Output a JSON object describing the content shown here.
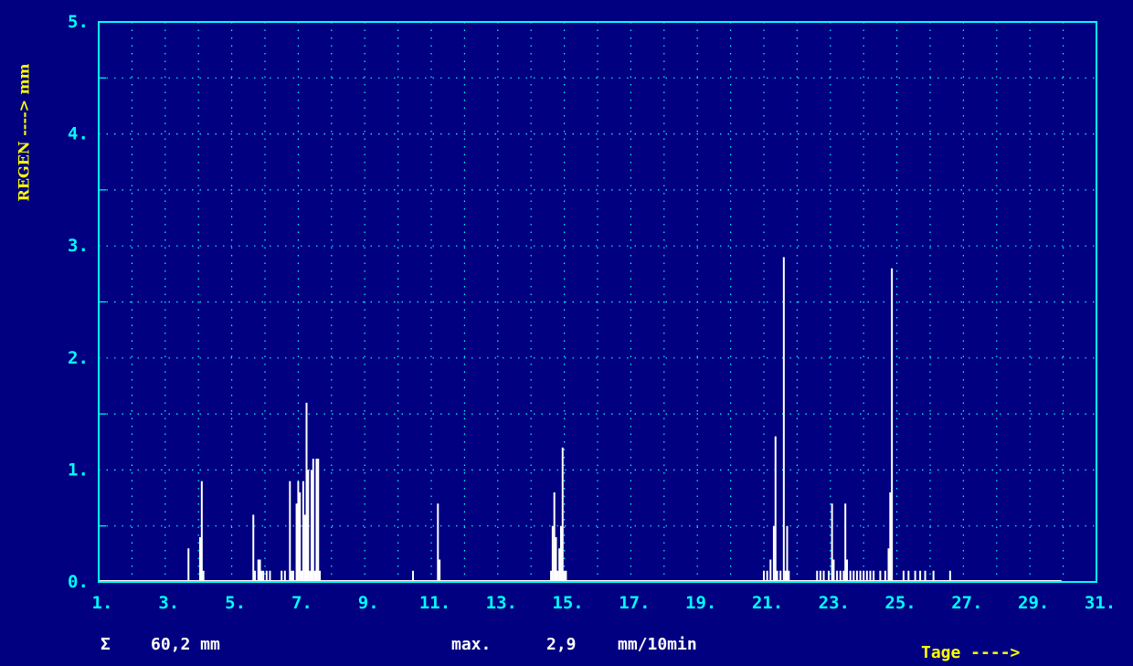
{
  "chart_data": {
    "type": "bar",
    "ylabel": "REGEN ----> mm",
    "xlabel": "Tage ---->",
    "xlim": [
      1,
      31
    ],
    "ylim": [
      0,
      5
    ],
    "grid": true,
    "x_ticks": [
      1,
      3,
      5,
      7,
      9,
      11,
      13,
      15,
      17,
      19,
      21,
      23,
      25,
      27,
      29,
      31
    ],
    "x_tick_labels": [
      "1.",
      "3.",
      "5.",
      "7.",
      "9.",
      "11.",
      "13.",
      "15.",
      "17.",
      "19.",
      "21.",
      "23.",
      "25.",
      "27.",
      "29.",
      "31."
    ],
    "y_ticks": [
      0,
      1,
      2,
      3,
      4,
      5
    ],
    "y_tick_labels": [
      "0.",
      "1.",
      "2.",
      "3.",
      "4.",
      "5."
    ],
    "bar_color": "#FFFFFF",
    "frame_color": "#00FFFF",
    "background_color": "#000080",
    "x": [
      3.7,
      4.05,
      4.1,
      4.15,
      5.65,
      5.7,
      5.8,
      5.85,
      5.9,
      5.95,
      6.05,
      6.15,
      6.5,
      6.6,
      6.75,
      6.8,
      6.85,
      6.95,
      7.0,
      7.05,
      7.1,
      7.15,
      7.2,
      7.25,
      7.3,
      7.35,
      7.4,
      7.45,
      7.5,
      7.55,
      7.6,
      7.65,
      10.45,
      11.2,
      11.25,
      14.6,
      14.65,
      14.7,
      14.75,
      14.8,
      14.85,
      14.9,
      14.95,
      15.0,
      15.05,
      21.0,
      21.1,
      21.2,
      21.3,
      21.35,
      21.4,
      21.5,
      21.6,
      21.65,
      21.7,
      21.75,
      22.6,
      22.7,
      22.8,
      22.95,
      23.05,
      23.1,
      23.2,
      23.3,
      23.4,
      23.45,
      23.5,
      23.6,
      23.7,
      23.8,
      23.9,
      24.0,
      24.1,
      24.2,
      24.3,
      24.5,
      24.65,
      24.75,
      24.8,
      24.85,
      25.2,
      25.35,
      25.55,
      25.7,
      25.85,
      26.1,
      26.6
    ],
    "values": [
      0.3,
      0.4,
      0.9,
      0.1,
      0.6,
      0.1,
      0.2,
      0.2,
      0.1,
      0.1,
      0.1,
      0.1,
      0.1,
      0.1,
      0.9,
      0.1,
      0.1,
      0.7,
      0.9,
      0.8,
      0.1,
      0.9,
      0.6,
      1.6,
      1.0,
      0.1,
      1.0,
      1.1,
      0.1,
      1.1,
      1.1,
      0.1,
      0.1,
      0.7,
      0.2,
      0.1,
      0.5,
      0.8,
      0.4,
      0.1,
      0.3,
      0.5,
      1.2,
      0.1,
      0.1,
      0.1,
      0.1,
      0.2,
      0.5,
      1.3,
      0.1,
      0.1,
      2.9,
      0.1,
      0.5,
      0.1,
      0.1,
      0.1,
      0.1,
      0.1,
      0.7,
      0.2,
      0.1,
      0.1,
      0.1,
      0.7,
      0.2,
      0.1,
      0.1,
      0.1,
      0.1,
      0.1,
      0.1,
      0.1,
      0.1,
      0.1,
      0.1,
      0.3,
      0.8,
      2.8,
      0.1,
      0.1,
      0.1,
      0.1,
      0.1,
      0.1,
      0.1
    ],
    "baseline_end_x": 29.95
  },
  "summary": {
    "sum_symbol": "Σ",
    "total": "60,2 mm",
    "max_label": "max.",
    "max_value": "2,9",
    "max_unit": "mm/10min"
  }
}
